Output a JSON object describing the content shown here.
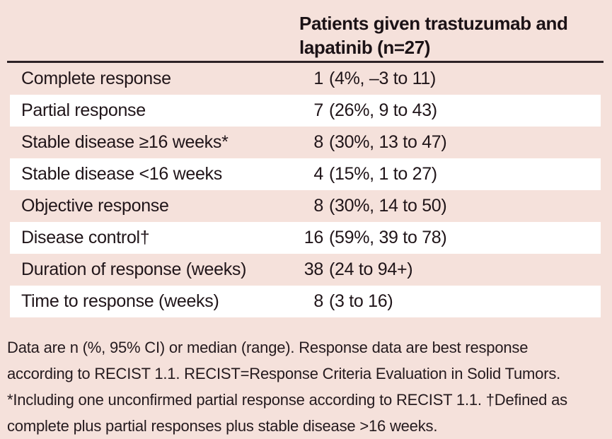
{
  "page": {
    "background_color": "#f5e1db"
  },
  "colors": {
    "row_stripe_white": "#ffffff",
    "header_rule_dark": "#2d2226",
    "text_dark": "#201519"
  },
  "table": {
    "column_header": {
      "line1": "Patients given trastuzumab and",
      "line2": "lapatinib (n=27)"
    },
    "rows": [
      {
        "label": "Complete response",
        "n": "1",
        "ci": "(4%, –3 to 11)"
      },
      {
        "label": "Partial response",
        "n": "7",
        "ci": "(26%, 9 to 43)"
      },
      {
        "label": "Stable disease ≥16 weeks*",
        "n": "8",
        "ci": "(30%, 13 to 47)"
      },
      {
        "label": "Stable disease <16 weeks",
        "n": "4",
        "ci": "(15%, 1 to 27)"
      },
      {
        "label": "Objective response",
        "n": "8",
        "ci": "(30%, 14 to 50)"
      },
      {
        "label": "Disease control†",
        "n": "16",
        "ci": "(59%, 39 to 78)"
      },
      {
        "label": "Duration of response (weeks)",
        "n": "38",
        "ci": "(24 to 94+)"
      },
      {
        "label": "Time to response (weeks)",
        "n": "8",
        "ci": "(3 to 16)"
      }
    ],
    "footnote_lines": [
      "Data are n (%, 95% CI) or median (range). Response data are best response",
      "according to RECIST 1.1. RECIST=Response Criteria Evaluation in Solid Tumors.",
      "*Including one unconfirmed partial response according to RECIST 1.1. †Defined as",
      "complete plus partial responses plus stable disease >16 weeks."
    ]
  }
}
